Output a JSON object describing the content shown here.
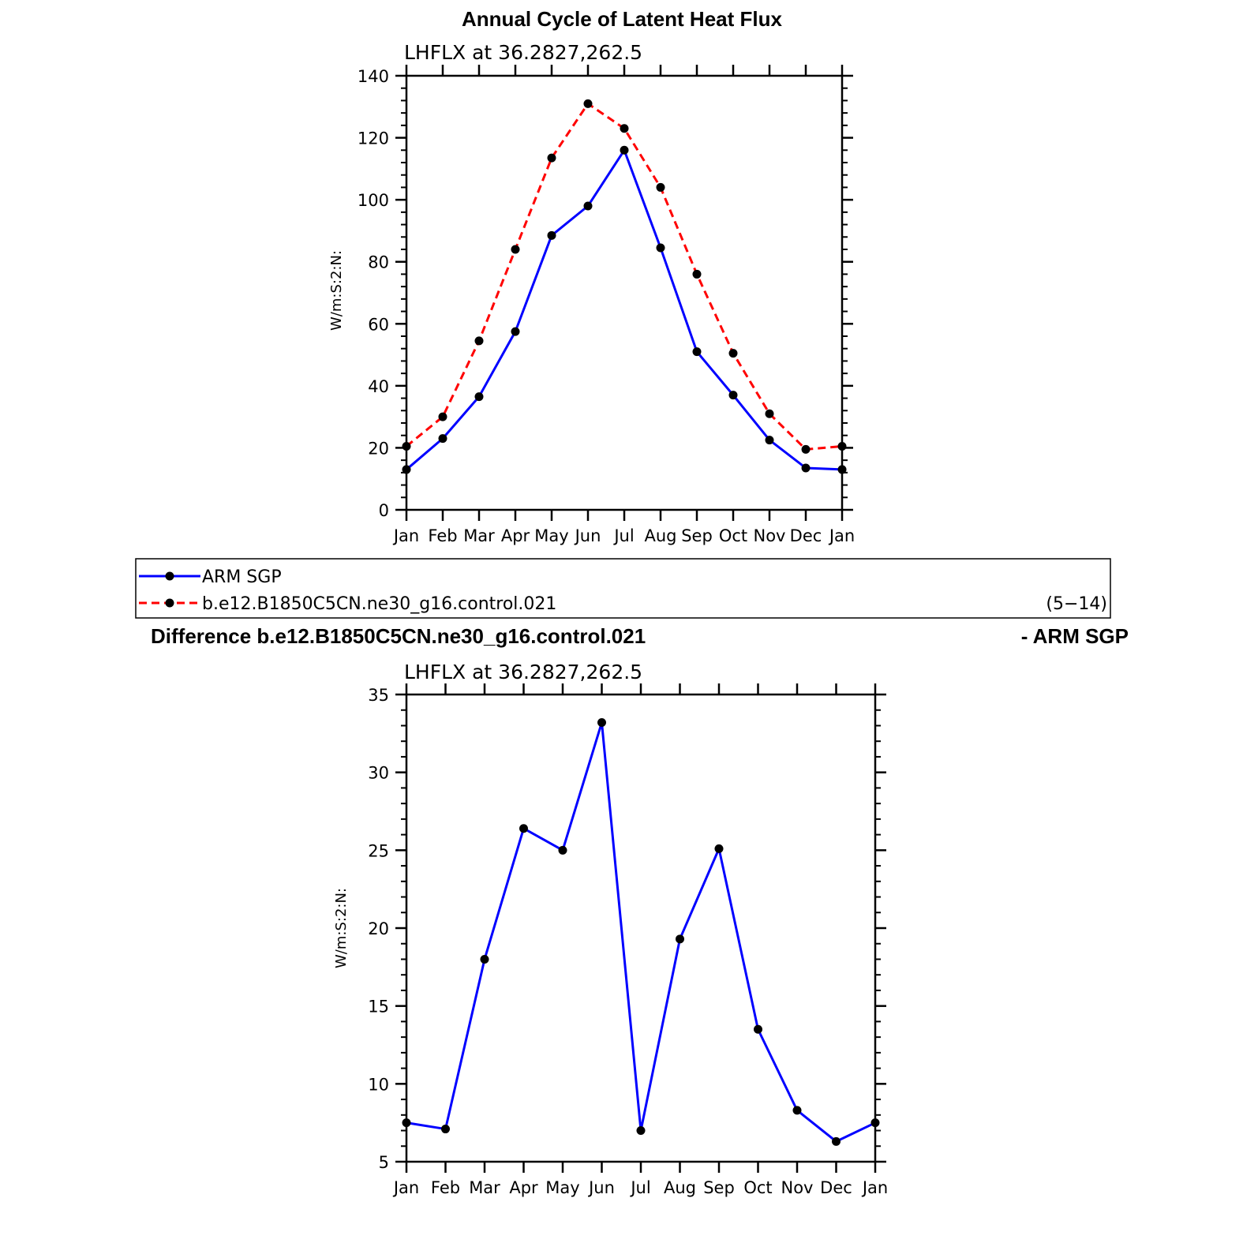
{
  "chart_data": [
    {
      "type": "line",
      "title": "Annual Cycle of Latent Heat Flux",
      "subtitle": "LHFLX at 36.2827,262.5",
      "ylabel": "W/m:S:2:N:",
      "xlabel": "",
      "categories": [
        "Jan",
        "Feb",
        "Mar",
        "Apr",
        "May",
        "Jun",
        "Jul",
        "Aug",
        "Sep",
        "Oct",
        "Nov",
        "Dec",
        "Jan"
      ],
      "ylim": [
        0,
        140
      ],
      "yticks": [
        "0",
        "20",
        "40",
        "60",
        "80",
        "100",
        "120",
        "140"
      ],
      "series": [
        {
          "name": "ARM SGP",
          "color": "#0000ff",
          "dash": "solid",
          "values": [
            13,
            23,
            36.5,
            57.5,
            88.5,
            98,
            116,
            84.5,
            51,
            37,
            22.5,
            13.5,
            13
          ]
        },
        {
          "name": "b.e12.B1850C5CN.ne30_g16.control.021",
          "color": "#ff0000",
          "dash": "dashed",
          "values": [
            20.5,
            30,
            54.5,
            84,
            113.5,
            131,
            123,
            104,
            76,
            50.5,
            31,
            19.5,
            20.5
          ]
        }
      ],
      "legend": {
        "position": "bottom",
        "note": "(5−14)"
      }
    },
    {
      "type": "line",
      "title": "Difference b.e12.B1850C5CN.ne30_g16.control.021",
      "title_right": "- ARM SGP",
      "subtitle": "LHFLX at 36.2827,262.5",
      "ylabel": "W/m:S:2:N:",
      "xlabel": "",
      "categories": [
        "Jan",
        "Feb",
        "Mar",
        "Apr",
        "May",
        "Jun",
        "Jul",
        "Aug",
        "Sep",
        "Oct",
        "Nov",
        "Dec",
        "Jan"
      ],
      "ylim": [
        5,
        35
      ],
      "yticks": [
        "5",
        "10",
        "15",
        "20",
        "25",
        "30",
        "35"
      ],
      "series": [
        {
          "color": "#0000ff",
          "dash": "solid",
          "values": [
            7.5,
            7.1,
            18,
            26.4,
            25,
            33.2,
            7,
            19.3,
            25.1,
            13.5,
            8.3,
            6.3,
            7.5
          ]
        }
      ]
    }
  ]
}
